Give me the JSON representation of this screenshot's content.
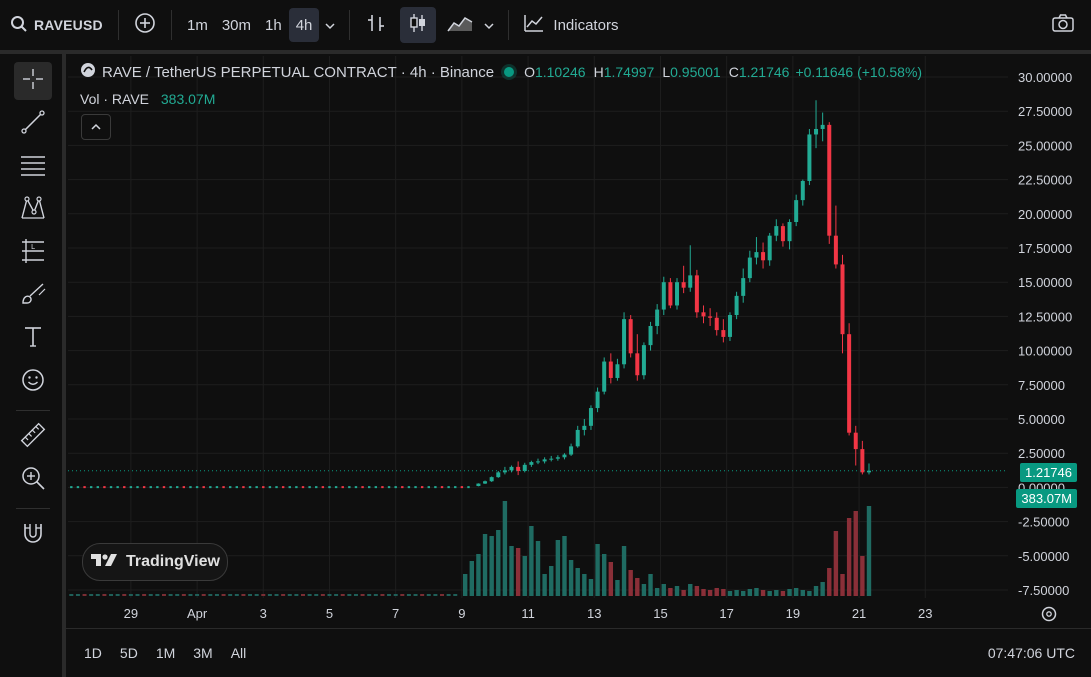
{
  "toolbar": {
    "symbol": "RAVEUSD",
    "timeframes": [
      "1m",
      "30m",
      "1h",
      "4h"
    ],
    "active_timeframe": "4h",
    "indicators_label": "Indicators"
  },
  "legend": {
    "title": "RAVE / TetherUS PERPETUAL CONTRACT · 4h · Binance",
    "open_label": "O",
    "open": "1.10246",
    "high_label": "H",
    "high": "1.74997",
    "low_label": "L",
    "low": "0.95001",
    "close_label": "C",
    "close": "1.21746",
    "change": "+0.11646 (+10.58%)"
  },
  "volume_legend": {
    "label": "Vol · RAVE",
    "value": "383.07M"
  },
  "branding": "TradingView",
  "bottom": {
    "ranges": [
      "1D",
      "5D",
      "1M",
      "3M",
      "All"
    ],
    "clock": "07:47:06 UTC"
  },
  "colors": {
    "up": "#22ab94",
    "down": "#f23645",
    "background": "#0f0f0f",
    "grid": "#1e1e1e",
    "last_price": "#089981"
  },
  "chart_data": {
    "type": "candlestick",
    "price_axis_ticks": [
      "30.00000",
      "27.50000",
      "25.00000",
      "22.50000",
      "20.00000",
      "17.50000",
      "15.00000",
      "12.50000",
      "10.00000",
      "7.50000",
      "5.00000",
      "2.50000",
      "0.00000",
      "-2.50000",
      "-5.00000",
      "-7.50000"
    ],
    "ylim": [
      -8.5,
      31.5
    ],
    "x_ticks": [
      "29",
      "Apr",
      "3",
      "5",
      "7",
      "9",
      "11",
      "13",
      "15",
      "17",
      "19",
      "21",
      "23"
    ],
    "x_tick_days": [
      29,
      31,
      33,
      35,
      37,
      39,
      41,
      43,
      45,
      47,
      49,
      51,
      53
    ],
    "xlim": [
      27.1,
      55.5
    ],
    "last_price": "1.21746",
    "last_volume": "383.07M",
    "candles_note_units": "x = day index (Mar 29 = 29, Apr 1 = 31, Apr 19 = 49); prices in USDT",
    "candles": [
      [
        39.5,
        0.1,
        0.3,
        0.08,
        0.28
      ],
      [
        39.7,
        0.28,
        0.5,
        0.25,
        0.45
      ],
      [
        39.9,
        0.45,
        0.8,
        0.4,
        0.75
      ],
      [
        40.1,
        0.75,
        1.2,
        0.7,
        1.1
      ],
      [
        40.3,
        1.1,
        1.5,
        0.95,
        1.25
      ],
      [
        40.5,
        1.25,
        1.6,
        1.1,
        1.5
      ],
      [
        40.7,
        1.5,
        1.9,
        0.9,
        1.2
      ],
      [
        40.9,
        1.2,
        1.8,
        1.1,
        1.65
      ],
      [
        41.1,
        1.65,
        1.95,
        1.5,
        1.85
      ],
      [
        41.3,
        1.85,
        2.1,
        1.7,
        1.9
      ],
      [
        41.5,
        1.9,
        2.2,
        1.75,
        2.05
      ],
      [
        41.7,
        2.05,
        2.3,
        1.9,
        2.1
      ],
      [
        41.9,
        2.1,
        2.35,
        1.95,
        2.2
      ],
      [
        42.1,
        2.2,
        2.5,
        2.05,
        2.4
      ],
      [
        42.3,
        2.4,
        3.2,
        2.3,
        3.0
      ],
      [
        42.5,
        3.0,
        4.5,
        2.9,
        4.2
      ],
      [
        42.7,
        4.2,
        5.0,
        3.8,
        4.5
      ],
      [
        42.9,
        4.5,
        6.0,
        4.2,
        5.8
      ],
      [
        43.1,
        5.8,
        7.3,
        5.5,
        7.0
      ],
      [
        43.3,
        7.0,
        9.5,
        6.8,
        9.2
      ],
      [
        43.5,
        9.2,
        9.8,
        7.6,
        8.0
      ],
      [
        43.7,
        8.0,
        9.4,
        7.8,
        9.0
      ],
      [
        43.9,
        9.0,
        12.8,
        8.7,
        12.3
      ],
      [
        44.1,
        12.3,
        12.6,
        9.5,
        9.8
      ],
      [
        44.3,
        9.8,
        11.2,
        7.8,
        8.2
      ],
      [
        44.5,
        8.2,
        10.6,
        7.9,
        10.4
      ],
      [
        44.7,
        10.4,
        12.1,
        10.0,
        11.8
      ],
      [
        44.9,
        11.8,
        13.4,
        11.2,
        13.0
      ],
      [
        45.1,
        13.0,
        15.4,
        12.6,
        15.0
      ],
      [
        45.3,
        15.0,
        15.3,
        13.1,
        13.3
      ],
      [
        45.5,
        13.3,
        15.3,
        13.0,
        15.0
      ],
      [
        45.7,
        15.0,
        16.2,
        14.2,
        14.6
      ],
      [
        45.9,
        14.6,
        17.7,
        14.3,
        15.5
      ],
      [
        46.1,
        15.5,
        15.9,
        12.4,
        12.8
      ],
      [
        46.3,
        12.8,
        13.3,
        12.0,
        12.5
      ],
      [
        46.5,
        12.5,
        13.1,
        11.8,
        12.4
      ],
      [
        46.7,
        12.4,
        12.8,
        11.1,
        11.5
      ],
      [
        46.9,
        11.5,
        12.3,
        10.6,
        11.0
      ],
      [
        47.1,
        11.0,
        12.8,
        10.7,
        12.6
      ],
      [
        47.3,
        12.6,
        14.3,
        12.3,
        14.0
      ],
      [
        47.5,
        14.0,
        16.0,
        13.5,
        15.3
      ],
      [
        47.7,
        15.3,
        17.3,
        15.0,
        16.8
      ],
      [
        47.9,
        16.8,
        18.3,
        16.3,
        17.2
      ],
      [
        48.1,
        17.2,
        17.9,
        16.0,
        16.6
      ],
      [
        48.3,
        16.6,
        18.6,
        16.2,
        18.4
      ],
      [
        48.5,
        18.4,
        19.6,
        18.0,
        19.1
      ],
      [
        48.7,
        19.1,
        19.3,
        17.6,
        18.0
      ],
      [
        48.9,
        18.0,
        19.6,
        17.4,
        19.4
      ],
      [
        49.1,
        19.4,
        21.4,
        19.1,
        21.0
      ],
      [
        49.3,
        21.0,
        22.5,
        20.6,
        22.4
      ],
      [
        49.5,
        22.4,
        26.2,
        22.1,
        25.8
      ],
      [
        49.7,
        25.8,
        28.3,
        24.8,
        26.2
      ],
      [
        49.9,
        26.2,
        27.4,
        25.3,
        26.5
      ],
      [
        50.1,
        26.5,
        26.7,
        17.8,
        18.4
      ],
      [
        50.3,
        18.4,
        20.6,
        16.0,
        16.3
      ],
      [
        50.5,
        16.3,
        17.0,
        9.8,
        11.2
      ],
      [
        50.7,
        11.2,
        12.0,
        3.8,
        4.0
      ],
      [
        50.9,
        4.0,
        4.5,
        1.6,
        2.8
      ],
      [
        51.1,
        2.8,
        3.4,
        0.95,
        1.1
      ],
      [
        51.3,
        1.1,
        1.75,
        0.95,
        1.22
      ]
    ],
    "volume_relative": [
      [
        39.1,
        0.22
      ],
      [
        39.3,
        0.35
      ],
      [
        39.5,
        0.42
      ],
      [
        39.7,
        0.62
      ],
      [
        39.9,
        0.6
      ],
      [
        40.1,
        0.66
      ],
      [
        40.3,
        0.95
      ],
      [
        40.5,
        0.5
      ],
      [
        40.7,
        0.48
      ],
      [
        40.9,
        0.4
      ],
      [
        41.1,
        0.7
      ],
      [
        41.3,
        0.55
      ],
      [
        41.5,
        0.22
      ],
      [
        41.7,
        0.3
      ],
      [
        41.9,
        0.56
      ],
      [
        42.1,
        0.6
      ],
      [
        42.3,
        0.36
      ],
      [
        42.5,
        0.28
      ],
      [
        42.7,
        0.22
      ],
      [
        42.9,
        0.17
      ],
      [
        43.1,
        0.52
      ],
      [
        43.3,
        0.42
      ],
      [
        43.5,
        0.34
      ],
      [
        43.7,
        0.16
      ],
      [
        43.9,
        0.5
      ],
      [
        44.1,
        0.26
      ],
      [
        44.3,
        0.18
      ],
      [
        44.5,
        0.12
      ],
      [
        44.7,
        0.22
      ],
      [
        44.9,
        0.08
      ],
      [
        45.1,
        0.12
      ],
      [
        45.3,
        0.08
      ],
      [
        45.5,
        0.1
      ],
      [
        45.7,
        0.06
      ],
      [
        45.9,
        0.12
      ],
      [
        46.1,
        0.1
      ],
      [
        46.3,
        0.07
      ],
      [
        46.5,
        0.06
      ],
      [
        46.7,
        0.08
      ],
      [
        46.9,
        0.07
      ],
      [
        47.1,
        0.05
      ],
      [
        47.3,
        0.06
      ],
      [
        47.5,
        0.05
      ],
      [
        47.7,
        0.07
      ],
      [
        47.9,
        0.08
      ],
      [
        48.1,
        0.06
      ],
      [
        48.3,
        0.05
      ],
      [
        48.5,
        0.06
      ],
      [
        48.7,
        0.05
      ],
      [
        48.9,
        0.07
      ],
      [
        49.1,
        0.08
      ],
      [
        49.3,
        0.06
      ],
      [
        49.5,
        0.05
      ],
      [
        49.7,
        0.1
      ],
      [
        49.9,
        0.14
      ],
      [
        50.1,
        0.28
      ],
      [
        50.3,
        0.65
      ],
      [
        50.5,
        0.22
      ],
      [
        50.7,
        0.78
      ],
      [
        50.9,
        0.85
      ],
      [
        51.1,
        0.4
      ],
      [
        51.3,
        0.9
      ]
    ]
  }
}
